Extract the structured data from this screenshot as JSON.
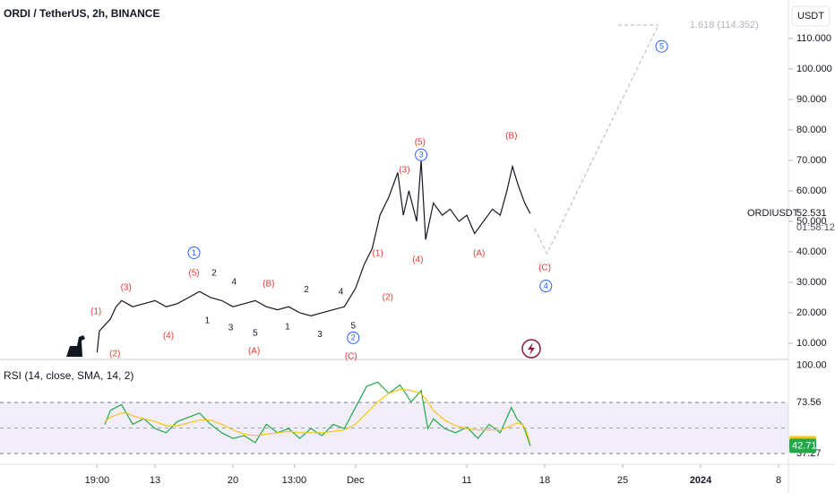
{
  "chart_data": [
    {
      "type": "line",
      "title": "ORDI / TetherUS, 2h, BINANCE",
      "currency": "USDT",
      "symbol": "ORDIUSDT",
      "last_price": 52.531,
      "countdown": "01:58:12",
      "color": "#131722",
      "x": [
        7.8,
        8.0,
        8.5,
        9,
        9.5,
        10,
        11,
        12,
        13,
        14,
        15,
        16,
        17,
        18,
        19,
        20,
        21,
        22,
        23,
        24,
        25,
        26,
        27,
        28,
        29,
        30,
        31,
        31.8,
        32.5,
        33.2,
        34,
        34.8,
        35.3,
        35.8,
        36.5,
        36.9,
        37.3,
        38,
        38.8,
        39.5,
        40.3,
        41,
        41.7,
        42.5,
        43.3,
        44,
        44.6,
        45.1,
        45.6,
        46.2,
        46.7
      ],
      "values": [
        7,
        14,
        16,
        18,
        22,
        24,
        22,
        23,
        24,
        22,
        23,
        25,
        27,
        25,
        24,
        22,
        23,
        24,
        22,
        21,
        22,
        20,
        19,
        20,
        21,
        22,
        28,
        36,
        41,
        52,
        58,
        66,
        52,
        60,
        50,
        70,
        44,
        56,
        52,
        54,
        50,
        52,
        46,
        50,
        54,
        52,
        60,
        68,
        62,
        56,
        52.531
      ],
      "xlim": [
        -0.92,
        69.88
      ],
      "ylim": [
        5,
        122.6
      ],
      "xticks": [
        {
          "value": 7.8,
          "label": "19:00"
        },
        {
          "value": 13,
          "label": "13"
        },
        {
          "value": 20,
          "label": "20"
        },
        {
          "value": 25.5,
          "label": "13:00"
        },
        {
          "value": 31,
          "label": "Dec"
        },
        {
          "value": 41,
          "label": "11"
        },
        {
          "value": 48,
          "label": "18"
        },
        {
          "value": 55,
          "label": "25"
        },
        {
          "value": 62,
          "label": "2024"
        },
        {
          "value": 69,
          "label": "8"
        }
      ],
      "yticks": [
        {
          "value": 10,
          "label": "10.000"
        },
        {
          "value": 20,
          "label": "20.000"
        },
        {
          "value": 30,
          "label": "30.000"
        },
        {
          "value": 40,
          "label": "40.000"
        },
        {
          "value": 50,
          "label": "50.000"
        },
        {
          "value": 60,
          "label": "60.000"
        },
        {
          "value": 70,
          "label": "70.000"
        },
        {
          "value": 80,
          "label": "80.000"
        },
        {
          "value": 90,
          "label": "90.000"
        },
        {
          "value": 100,
          "label": "100.000"
        },
        {
          "value": 110,
          "label": "110.000"
        }
      ],
      "projection": {
        "x": [
          47.1,
          48.2,
          58.2
        ],
        "values": [
          47.6,
          39.4,
          114.352
        ],
        "color": "#b2b5be"
      },
      "fib": {
        "label": "1.618 (114.352)",
        "value": 114.352,
        "x": [
          54.6,
          58.2
        ]
      },
      "annotations": [
        {
          "text": "(1)",
          "x": 7.7,
          "y": 20.3,
          "color": "#e53935"
        },
        {
          "text": "(2)",
          "x": 9.4,
          "y": 6.5,
          "color": "#e53935"
        },
        {
          "text": "(3)",
          "x": 10.4,
          "y": 28.2,
          "color": "#e53935"
        },
        {
          "text": "(4)",
          "x": 14.2,
          "y": 12.4,
          "color": "#e53935"
        },
        {
          "text": "(5)",
          "x": 16.5,
          "y": 33,
          "color": "#e53935"
        },
        {
          "text": "1",
          "x": 17.7,
          "y": 17.4,
          "color": "#131722"
        },
        {
          "text": "2",
          "x": 18.3,
          "y": 33,
          "color": "#131722"
        },
        {
          "text": "3",
          "x": 19.8,
          "y": 15,
          "color": "#131722"
        },
        {
          "text": "4",
          "x": 20.1,
          "y": 30,
          "color": "#131722"
        },
        {
          "text": "5",
          "x": 22,
          "y": 13.2,
          "color": "#131722"
        },
        {
          "text": "(A)",
          "x": 21.9,
          "y": 7.4,
          "color": "#e53935"
        },
        {
          "text": "(B)",
          "x": 23.2,
          "y": 29.4,
          "color": "#e53935"
        },
        {
          "text": "1",
          "x": 24.9,
          "y": 15.3,
          "color": "#131722"
        },
        {
          "text": "2",
          "x": 26.6,
          "y": 27.6,
          "color": "#131722"
        },
        {
          "text": "3",
          "x": 27.8,
          "y": 12.9,
          "color": "#131722"
        },
        {
          "text": "4",
          "x": 29.7,
          "y": 26.8,
          "color": "#131722"
        },
        {
          "text": "5",
          "x": 30.8,
          "y": 15.6,
          "color": "#131722"
        },
        {
          "text": "(C)",
          "x": 30.6,
          "y": 5.6,
          "color": "#e53935"
        },
        {
          "text": "(1)",
          "x": 33,
          "y": 39.4,
          "color": "#e53935"
        },
        {
          "text": "(2)",
          "x": 33.9,
          "y": 25,
          "color": "#e53935"
        },
        {
          "text": "(3)",
          "x": 35.4,
          "y": 66.8,
          "color": "#e53935"
        },
        {
          "text": "(4)",
          "x": 36.6,
          "y": 37.4,
          "color": "#e53935"
        },
        {
          "text": "(5)",
          "x": 36.8,
          "y": 75.9,
          "color": "#e53935"
        },
        {
          "text": "(A)",
          "x": 42.1,
          "y": 39.4,
          "color": "#e53935"
        },
        {
          "text": "(B)",
          "x": 45,
          "y": 77.9,
          "color": "#e53935"
        },
        {
          "text": "(C)",
          "x": 48,
          "y": 34.7,
          "color": "#e53935"
        }
      ],
      "circled": [
        {
          "text": "1",
          "x": 16.5,
          "y": 39.7,
          "color": "#2962ff"
        },
        {
          "text": "2",
          "x": 30.8,
          "y": 11.8,
          "color": "#2962ff"
        },
        {
          "text": "3",
          "x": 36.9,
          "y": 71.8,
          "color": "#2962ff"
        },
        {
          "text": "4",
          "x": 48.1,
          "y": 28.8,
          "color": "#2962ff"
        },
        {
          "text": "5",
          "x": 58.5,
          "y": 107.4,
          "color": "#2962ff"
        }
      ]
    },
    {
      "type": "line",
      "title": "RSI (14, close, SMA, 14, 2)",
      "xlim": [
        -0.92,
        69.88
      ],
      "ylim": [
        31.5,
        103.5
      ],
      "x": [
        8.5,
        9,
        10,
        10.5,
        11,
        12,
        13,
        14,
        15,
        16,
        17,
        18,
        19,
        20,
        21,
        22,
        23,
        24,
        25,
        26,
        27,
        28,
        29,
        30,
        31,
        32,
        33,
        34,
        35,
        36,
        36.9,
        37.5,
        38,
        39,
        40,
        41,
        42,
        43,
        44,
        45,
        45.5,
        46,
        46.3,
        46.7
      ],
      "series": [
        {
          "name": "RSI",
          "color": "#22a94a",
          "values": [
            58,
            68,
            72,
            65,
            58,
            62,
            55,
            52,
            60,
            63,
            66,
            58,
            52,
            48,
            50,
            45,
            58,
            52,
            55,
            48,
            55,
            50,
            58,
            55,
            70,
            85,
            88,
            80,
            86,
            74,
            82,
            55,
            62,
            55,
            52,
            56,
            48,
            58,
            52,
            70,
            62,
            58,
            52,
            42.71
          ]
        },
        {
          "name": "SMA",
          "color": "#f5c518",
          "values": [
            60,
            63,
            66,
            66,
            64,
            62,
            60,
            57,
            57,
            59,
            61,
            61,
            58,
            54,
            51,
            50,
            51,
            52,
            53,
            52,
            52,
            52,
            53,
            54,
            58,
            66,
            74,
            80,
            83,
            82,
            80,
            74,
            68,
            61,
            57,
            55,
            54,
            54,
            54,
            57,
            59,
            58,
            54,
            44.62
          ]
        }
      ],
      "bands": [
        {
          "value": 73.56,
          "label": "73.56"
        },
        {
          "value": 37.27,
          "label": "37.27"
        }
      ],
      "yticks": [
        {
          "value": 100,
          "label": "100.00"
        }
      ]
    }
  ]
}
